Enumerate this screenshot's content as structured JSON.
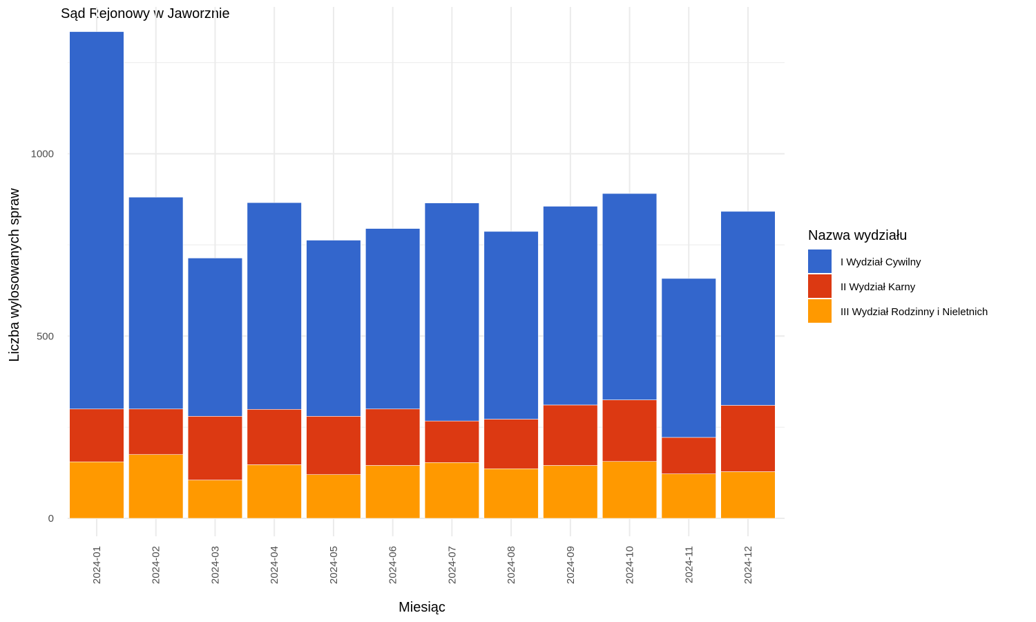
{
  "chart_data": {
    "type": "bar",
    "stacked": true,
    "title": "Sąd Rejonowy w Jaworznie",
    "xlabel": "Miesiąc",
    "ylabel": "Liczba wylosowanych spraw",
    "ylim": [
      -50,
      1370
    ],
    "yticks": [
      0,
      500,
      1000
    ],
    "grid": true,
    "categories": [
      "2024-01",
      "2024-02",
      "2024-03",
      "2024-04",
      "2024-05",
      "2024-06",
      "2024-07",
      "2024-08",
      "2024-09",
      "2024-10",
      "2024-11",
      "2024-12"
    ],
    "legend": {
      "title": "Nazwa wydziału",
      "placement": "right"
    },
    "series": [
      {
        "name": "III Wydział Rodzinny i Nieletnich",
        "color": "#FF9900",
        "values": [
          155,
          175,
          105,
          147,
          120,
          145,
          153,
          136,
          145,
          156,
          122,
          128
        ]
      },
      {
        "name": "II Wydział Karny",
        "color": "#DC3912",
        "values": [
          145,
          125,
          175,
          152,
          160,
          155,
          114,
          136,
          166,
          169,
          100,
          182
        ]
      },
      {
        "name": "I Wydział Cywilny",
        "color": "#3366CC",
        "values": [
          1035,
          581,
          434,
          567,
          483,
          495,
          598,
          515,
          545,
          566,
          436,
          532
        ]
      }
    ],
    "legend_order": [
      "I Wydział Cywilny",
      "II Wydział Karny",
      "III Wydział Rodzinny i Nieletnich"
    ]
  }
}
